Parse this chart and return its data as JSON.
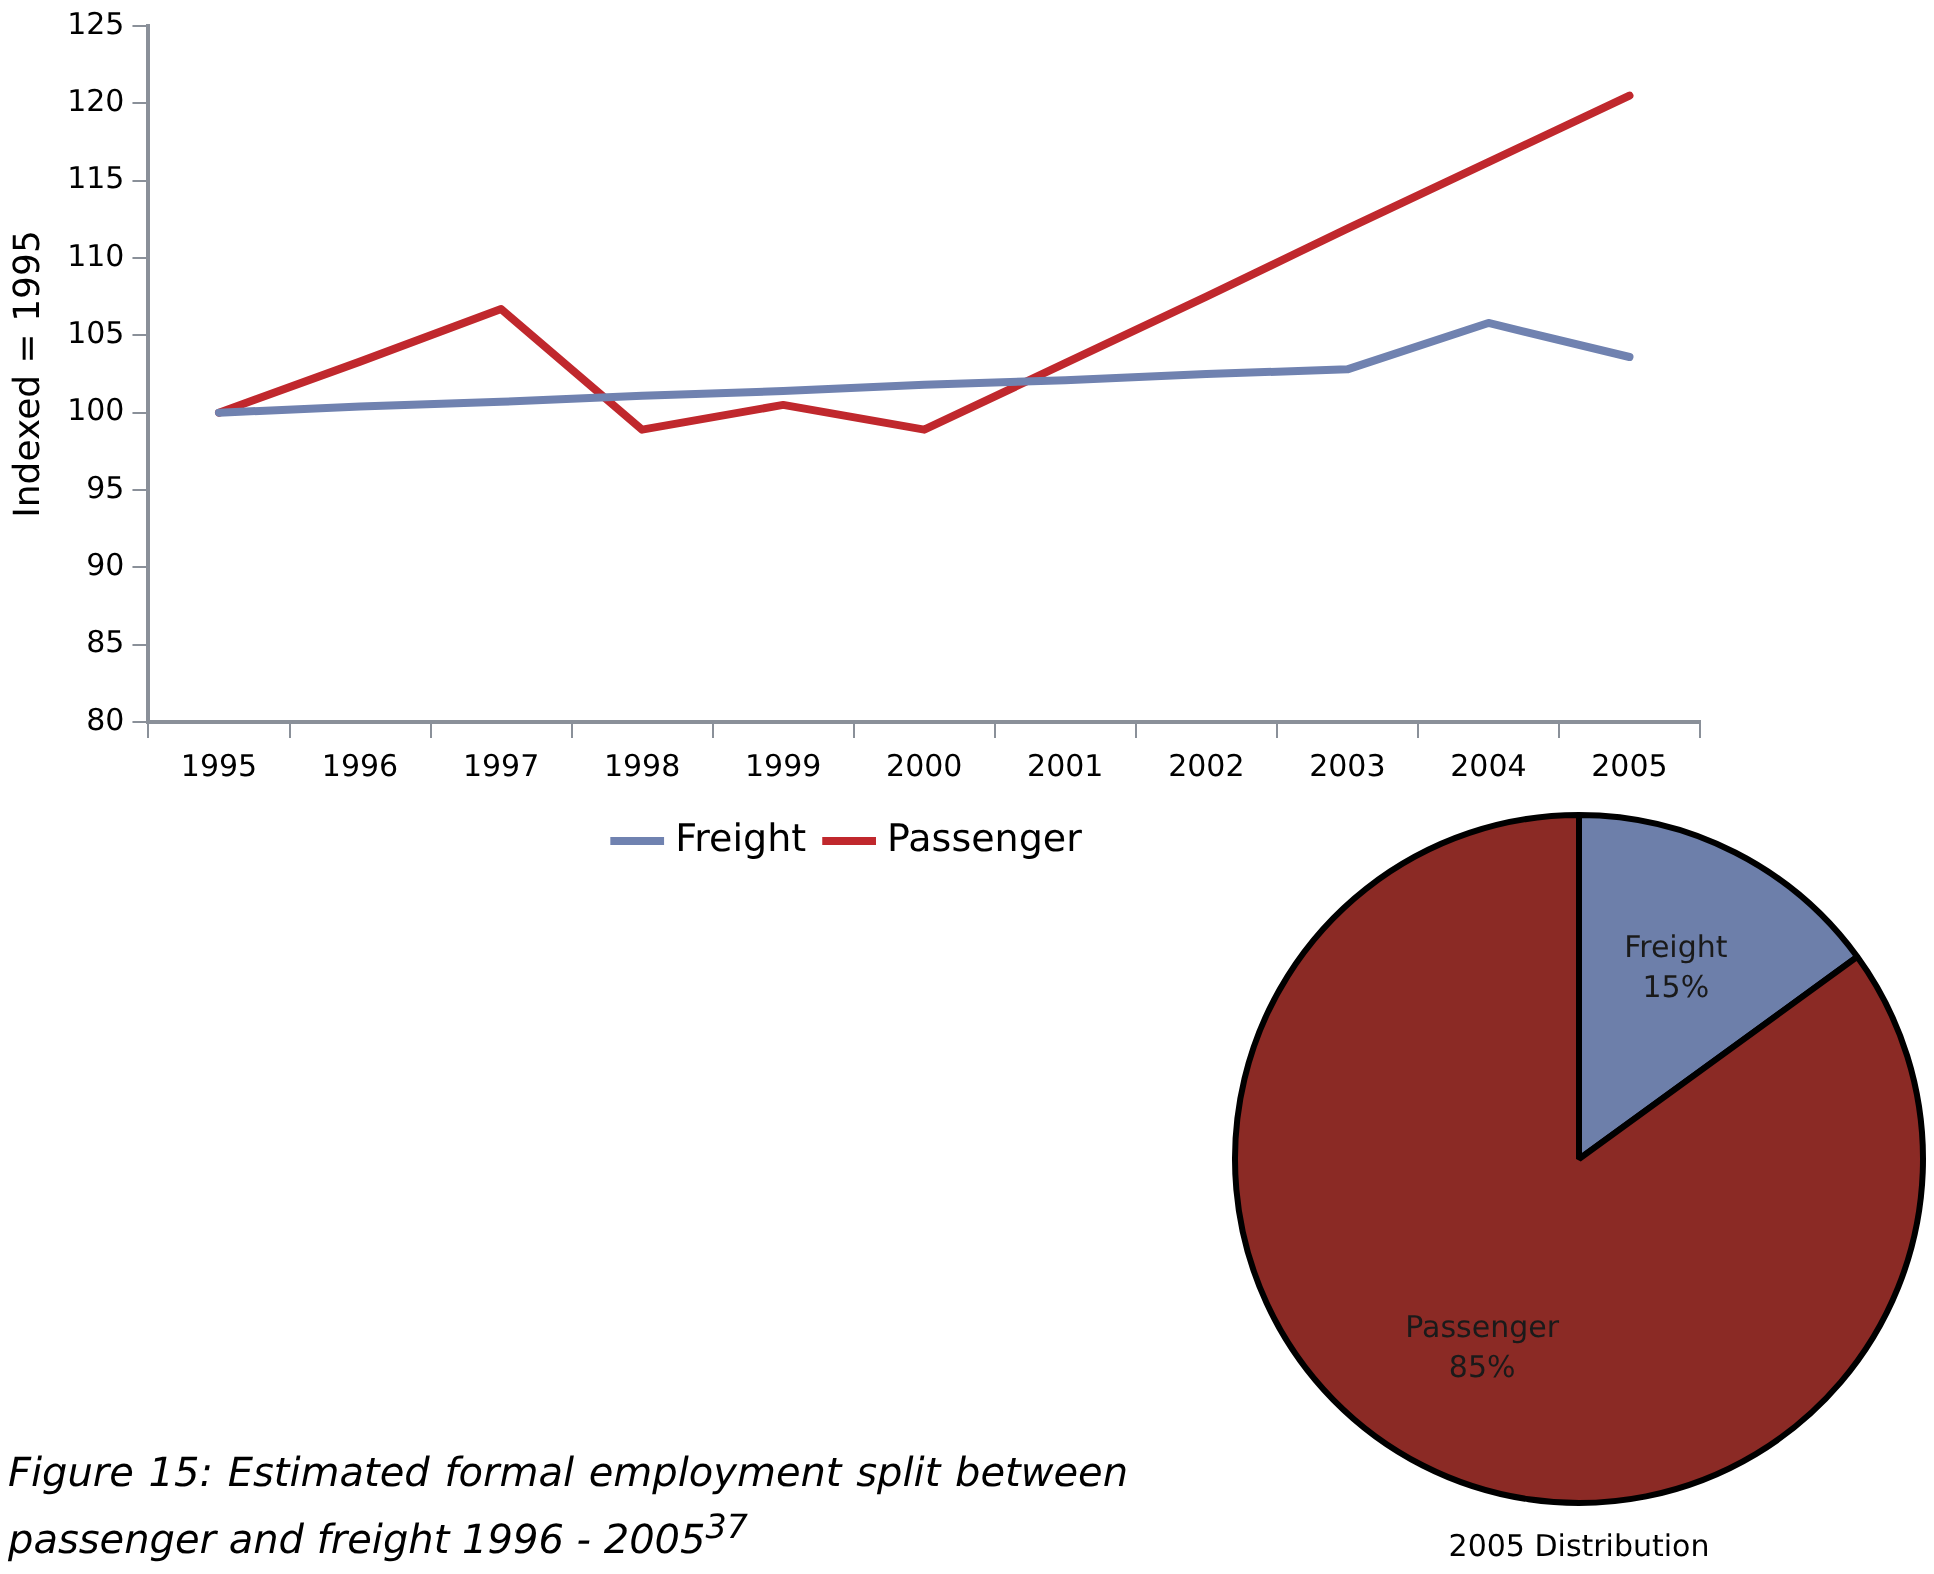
{
  "chart_data": [
    {
      "type": "line",
      "ylabel": "Indexed = 1995",
      "categories": [
        "1995",
        "1996",
        "1997",
        "1998",
        "1999",
        "2000",
        "2001",
        "2002",
        "2003",
        "2004",
        "2005"
      ],
      "series": [
        {
          "name": "Freight",
          "color": "#7082b0",
          "values": [
            100,
            100.4,
            100.7,
            101.1,
            101.4,
            101.8,
            102.1,
            102.5,
            102.8,
            105.8,
            103.6
          ]
        },
        {
          "name": "Passenger",
          "color": "#c0282d",
          "values": [
            100,
            103.3,
            106.7,
            98.9,
            100.5,
            98.9,
            103.2,
            107.5,
            111.9,
            116.2,
            120.5
          ]
        }
      ],
      "ylim": [
        80,
        125
      ],
      "yticks": [
        80,
        85,
        90,
        95,
        100,
        105,
        110,
        115,
        120,
        125
      ],
      "grid": false,
      "legend": "bottom",
      "marker": "none",
      "line_style": "solid",
      "annotations": [
        "Figure 15: Estimated formal employment split between passenger and freight 1996 - 2005$^{37}$"
      ]
    },
    {
      "type": "pie",
      "title": "2005 Distribution",
      "categories": [
        "Freight",
        "Passenger"
      ],
      "values": [
        15,
        85
      ],
      "value_labels": [
        "15%",
        "85%"
      ],
      "colors": [
        "#6d7faa",
        "#8b2a25"
      ],
      "legend": false
    }
  ]
}
